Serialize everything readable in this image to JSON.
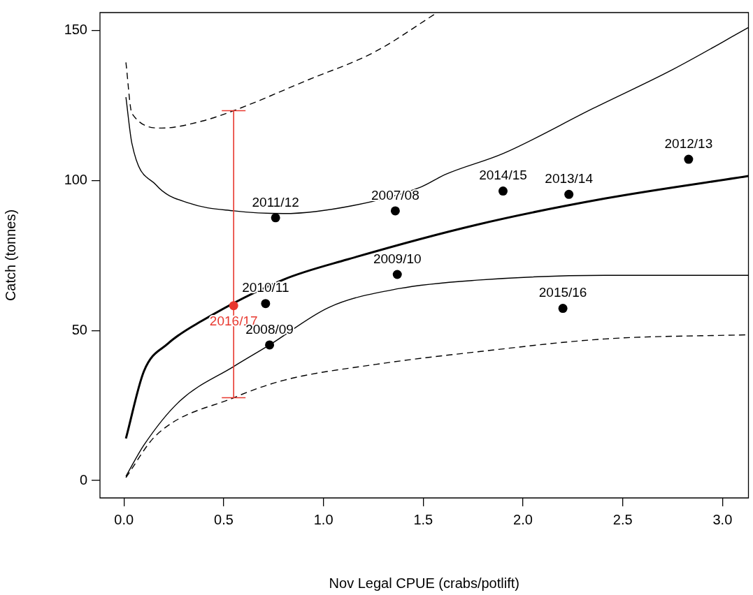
{
  "chart_data": {
    "type": "scatter",
    "xlabel": "Nov Legal CPUE (crabs/potlift)",
    "ylabel": "Catch (tonnes)",
    "xlim": [
      -0.12,
      3.13
    ],
    "ylim": [
      -5.8,
      156
    ],
    "xticks": [
      {
        "value": 0,
        "label": "0.0"
      },
      0.5,
      {
        "value": 1,
        "label": "1.0"
      },
      1.5,
      {
        "value": 2,
        "label": "2.0"
      },
      2.5,
      {
        "value": 3,
        "label": "3.0"
      }
    ],
    "yticks": [
      0,
      50,
      100,
      150
    ],
    "grid": false,
    "legend": false,
    "series": [
      {
        "type": "scatter",
        "color": "#000000",
        "marker": "circle",
        "x": [
          0.76,
          1.36,
          1.37,
          1.9,
          2.23,
          2.83,
          2.2,
          0.71,
          0.73
        ],
        "values": [
          87.6,
          89.9,
          68.7,
          96.5,
          95.4,
          107.1,
          57.4,
          59.0,
          45.2
        ]
      },
      {
        "type": "scatter",
        "name": "2016/17",
        "color": "#e8382f",
        "marker": "circle",
        "x": [
          0.55
        ],
        "values": [
          58.3
        ],
        "errors": [
          [
            27.6,
            123.3
          ]
        ]
      },
      {
        "type": "line",
        "color": "#000000",
        "marker": "none",
        "line_style": "solid",
        "x": [
          0.01,
          0.1,
          0.22,
          0.39,
          0.8,
          1.12,
          1.77,
          2.41,
          3.13
        ],
        "values": [
          14,
          36.4,
          45.6,
          53.2,
          67,
          73.7,
          85.3,
          94,
          101.5
        ]
      },
      {
        "type": "line",
        "color": "#000000",
        "marker": "none",
        "line_style": "solid",
        "x": [
          0.01,
          0.04,
          0.16,
          0.33,
          0.55,
          0.8,
          1.15,
          1.49,
          1.61,
          1.9,
          2.35,
          2.75,
          3.13
        ],
        "values": [
          127.8,
          112.4,
          98.6,
          92.4,
          89.9,
          89,
          91.7,
          97.9,
          102,
          109,
          124,
          137,
          151
        ]
      },
      {
        "type": "line",
        "color": "#000000",
        "marker": "none",
        "line_style": "solid",
        "x": [
          0.01,
          0.1,
          0.28,
          0.55,
          0.73,
          1.03,
          1.38,
          1.77,
          2.41,
          3.13
        ],
        "values": [
          1.4,
          11.8,
          26.5,
          38,
          45.2,
          57.8,
          64,
          66.8,
          68.4,
          68.4
        ]
      },
      {
        "type": "line",
        "color": "#000000",
        "marker": "none",
        "line_style": "dashed",
        "x": [
          0.01,
          0.04,
          0.19,
          0.39,
          0.55,
          0.91,
          1.26,
          1.57
        ],
        "values": [
          139.4,
          122.4,
          117.5,
          119.8,
          123.3,
          133.2,
          143,
          156
        ]
      },
      {
        "type": "line",
        "color": "#000000",
        "marker": "none",
        "line_style": "dashed",
        "x": [
          0.01,
          0.16,
          0.55,
          0.8,
          1.26,
          1.77,
          2.41,
          3.13
        ],
        "values": [
          1.0,
          15,
          27.6,
          33.4,
          38.7,
          42.9,
          47.2,
          48.6
        ]
      }
    ],
    "annotations": [
      {
        "text": "2011/12",
        "x": 0.76,
        "y": 87.6
      },
      {
        "text": "2007/08",
        "x": 1.36,
        "y": 89.9
      },
      {
        "text": "2009/10",
        "x": 1.37,
        "y": 68.7
      },
      {
        "text": "2014/15",
        "x": 1.9,
        "y": 96.5
      },
      {
        "text": "2013/14",
        "x": 2.23,
        "y": 95.4
      },
      {
        "text": "2012/13",
        "x": 2.83,
        "y": 107.1
      },
      {
        "text": "2015/16",
        "x": 2.2,
        "y": 57.4
      },
      {
        "text": "2010/11",
        "x": 0.71,
        "y": 59.0
      },
      {
        "text": "2008/09",
        "x": 0.73,
        "y": 45.2
      }
    ]
  }
}
